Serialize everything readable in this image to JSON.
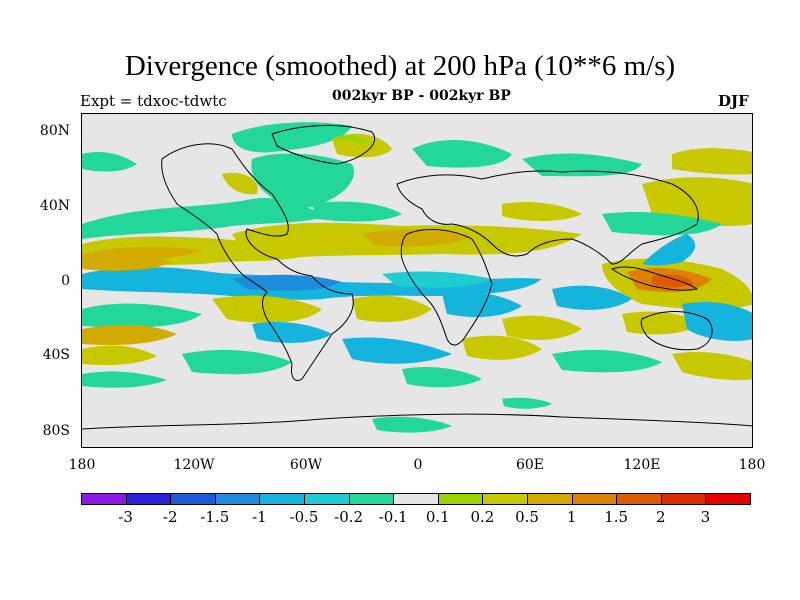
{
  "title": "Divergence (smoothed) at 200 hPa (10**6 m/s)",
  "subtitle_left": "Expt = tdxoc-tdwtc",
  "subtitle_center": "002kyr BP - 002kyr BP",
  "subtitle_right": "DJF",
  "lat_labels": [
    "80N",
    "40N",
    "0",
    "40S",
    "80S"
  ],
  "lon_labels": [
    "180",
    "120W",
    "60W",
    "0",
    "60E",
    "120E",
    "180"
  ],
  "colorbar": {
    "colors": [
      "#8a1be6",
      "#2e22dc",
      "#1e5adc",
      "#1e8cdc",
      "#14b4dc",
      "#1ecdd2",
      "#23d79b",
      "#e6e6e6",
      "#9bd200",
      "#c8c800",
      "#d2aa00",
      "#dc8200",
      "#dc5a00",
      "#dc2d00",
      "#e60000"
    ],
    "labels": [
      "-3",
      "-2",
      "-1.5",
      "-1",
      "-0.5",
      "-0.2",
      "-0.1",
      "0.1",
      "0.2",
      "0.5",
      "1",
      "1.5",
      "2",
      "3"
    ]
  }
}
